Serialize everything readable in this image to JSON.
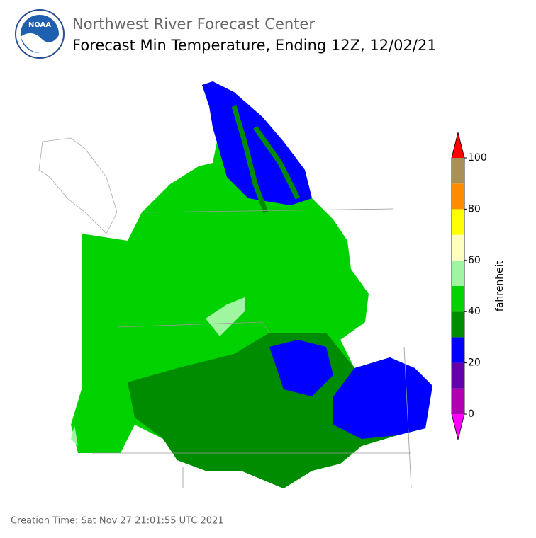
{
  "header": {
    "title": "Northwest River Forecast Center",
    "subtitle": "Forecast Min Temperature, Ending 12Z, 12/02/21",
    "logo_text": "NOAA"
  },
  "colorbar": {
    "label": "fahrenheit",
    "lim": [
      0,
      100
    ],
    "levels": [
      0,
      10,
      20,
      30,
      40,
      50,
      60,
      70,
      80,
      90,
      100
    ],
    "colors": [
      "#b000b0",
      "#6400aa",
      "#0000ff",
      "#008c00",
      "#00d200",
      "#a0f5a0",
      "#ffffc0",
      "#ffff00",
      "#ff8c00",
      "#a89058"
    ],
    "under_color": "#ff00ff",
    "over_color": "#ff0000",
    "ticks": [
      0,
      20,
      40,
      60,
      80,
      100
    ]
  },
  "footer": {
    "creation_time": "Creation Time: Sat Nov 27 21:01:55 UTC 2021"
  }
}
